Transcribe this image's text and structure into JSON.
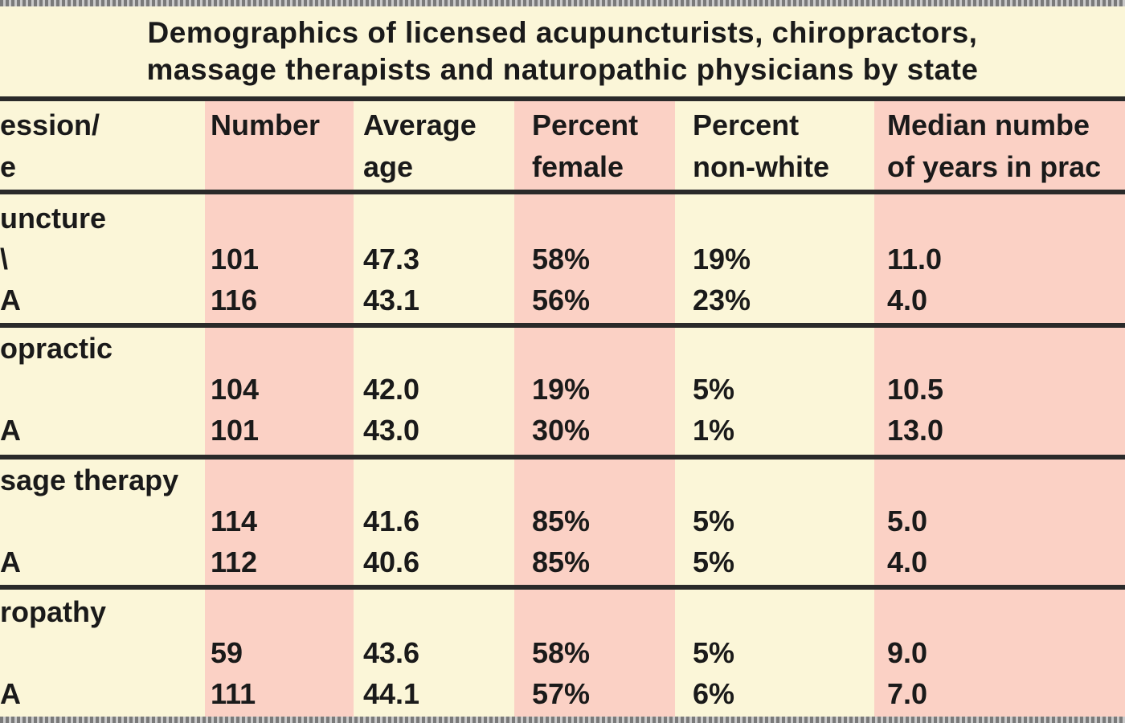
{
  "chart_data": {
    "type": "table",
    "title": "Demographics of licensed acupuncturists, chiropractors, massage therapists and naturopathic physicians by state",
    "title_lines": [
      "Demographics of licensed acupuncturists, chiropractors,",
      "massage therapists and naturopathic physicians by state"
    ],
    "columns": [
      [
        "ession/",
        "e"
      ],
      [
        "Number",
        ""
      ],
      [
        "Average",
        "age"
      ],
      [
        "Percent",
        "female"
      ],
      [
        "Percent",
        "non-white"
      ],
      [
        "Median numbe",
        "of years in prac"
      ]
    ],
    "groups": [
      {
        "name": "uncture",
        "rows": [
          [
            "\\",
            "101",
            "47.3",
            "58%",
            "19%",
            "11.0"
          ],
          [
            "A",
            "116",
            "43.1",
            "56%",
            "23%",
            "4.0"
          ]
        ]
      },
      {
        "name": "opractic",
        "rows": [
          [
            "",
            "104",
            "42.0",
            "19%",
            "5%",
            "10.5"
          ],
          [
            "A",
            "101",
            "43.0",
            "30%",
            "1%",
            "13.0"
          ]
        ]
      },
      {
        "name": "sage therapy",
        "rows": [
          [
            "",
            "114",
            "41.6",
            "85%",
            "5%",
            "5.0"
          ],
          [
            "A",
            "112",
            "40.6",
            "85%",
            "5%",
            "4.0"
          ]
        ]
      },
      {
        "name": "ropathy",
        "rows": [
          [
            "",
            "59",
            "43.6",
            "58%",
            "5%",
            "9.0"
          ],
          [
            "A",
            "111",
            "44.1",
            "57%",
            "6%",
            "7.0"
          ]
        ]
      }
    ],
    "colors": {
      "background": "#fbf6d8",
      "band": "#fbd1c5",
      "rule": "#2a2a2a",
      "text": "#1a1a1a"
    }
  }
}
